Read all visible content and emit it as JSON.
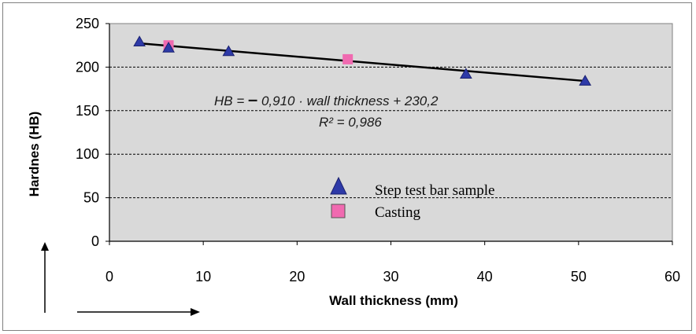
{
  "chart_data": {
    "type": "scatter",
    "xlabel": "Wall thickness (mm)",
    "ylabel": "Hardnes (HB)",
    "xlim": [
      0,
      60
    ],
    "ylim": [
      0,
      250
    ],
    "x_ticks": [
      "0",
      "10",
      "20",
      "30",
      "40",
      "50",
      "60"
    ],
    "y_ticks": [
      "0",
      "50",
      "100",
      "150",
      "200",
      "250"
    ],
    "grid": "horizontal dashed",
    "legend_position": "center-left",
    "series": [
      {
        "name": "Step test bar sample",
        "marker": "triangle",
        "color": "#2e3aa8",
        "points": [
          {
            "x": 3.2,
            "y": 229
          },
          {
            "x": 6.3,
            "y": 222
          },
          {
            "x": 12.7,
            "y": 218
          },
          {
            "x": 38,
            "y": 192
          },
          {
            "x": 50.7,
            "y": 184
          }
        ]
      },
      {
        "name": "Casting",
        "marker": "square",
        "color": "#f06ab0",
        "points": [
          {
            "x": 6.3,
            "y": 225
          },
          {
            "x": 25.4,
            "y": 209
          }
        ]
      }
    ],
    "trendline": {
      "slope": -0.91,
      "intercept": 230.2,
      "x_range": [
        3.2,
        50.7
      ],
      "color": "#000000"
    },
    "annotations": {
      "equation_prefix": "HB = ",
      "equation_minus": "–",
      "equation_rest": " 0,910 · wall thickness + 230,2",
      "r_squared": "R² = 0,986"
    },
    "colors": {
      "plot_background": "#d9d9d9",
      "grid": "#000000"
    }
  }
}
